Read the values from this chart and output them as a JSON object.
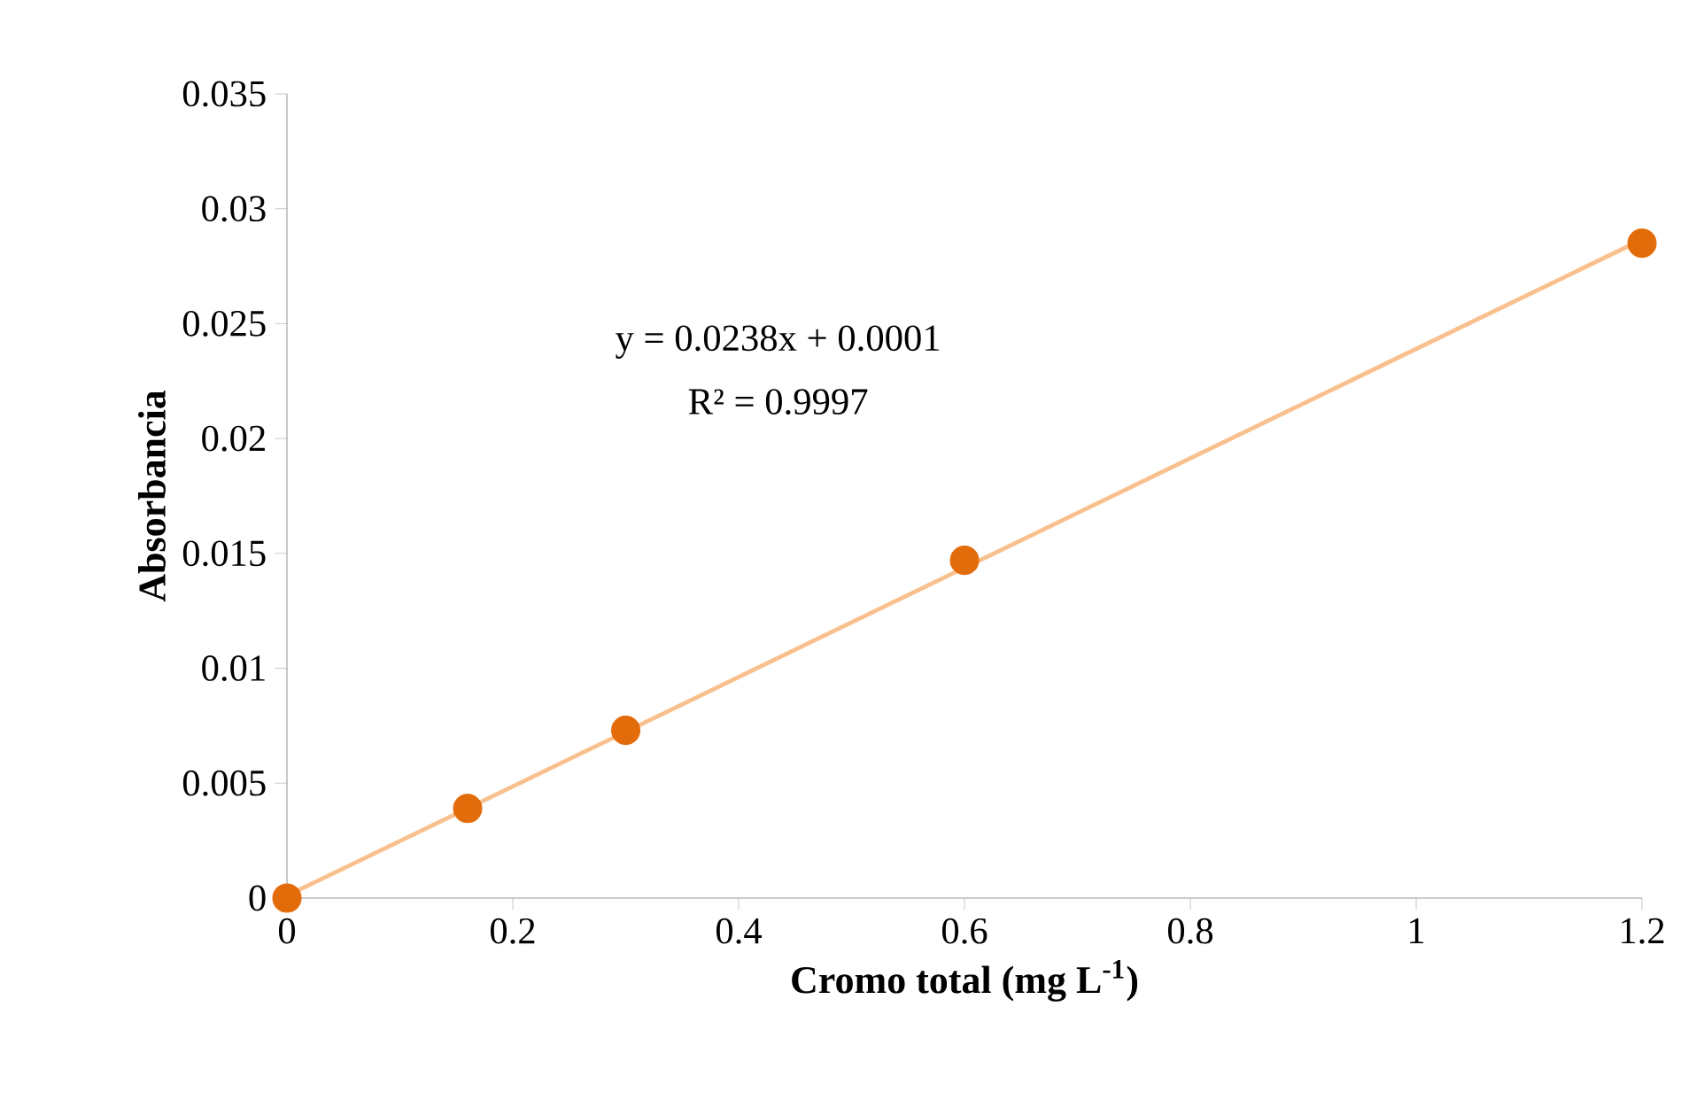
{
  "chart_data": {
    "type": "scatter",
    "xlabel": "Cromo total (mg L$^{-1}$)",
    "ylabel": "Absorbancia",
    "annotations": [
      "y = 0.0238x + 0.0001",
      "R² = 0.9997"
    ],
    "xlim": [
      0,
      1.2
    ],
    "xticks": [
      0,
      0.2,
      0.4,
      0.6,
      0.8,
      1,
      1.2
    ],
    "ylim": [
      0,
      0.035
    ],
    "yticks": [
      0,
      0.005,
      0.01,
      0.015,
      0.02,
      0.025,
      0.03,
      0.035
    ],
    "series": [
      {
        "type": "line",
        "x": [
          0,
          1.2
        ],
        "values": [
          0.0001,
          0.02866
        ],
        "color": "#f9c08e",
        "marker": "none"
      },
      {
        "x": [
          0,
          0.16,
          0.3,
          0.6,
          1.2
        ],
        "values": [
          0,
          0.0039,
          0.0073,
          0.0147,
          0.0285
        ],
        "color": "#e36c0a",
        "marker": "circle"
      }
    ]
  }
}
